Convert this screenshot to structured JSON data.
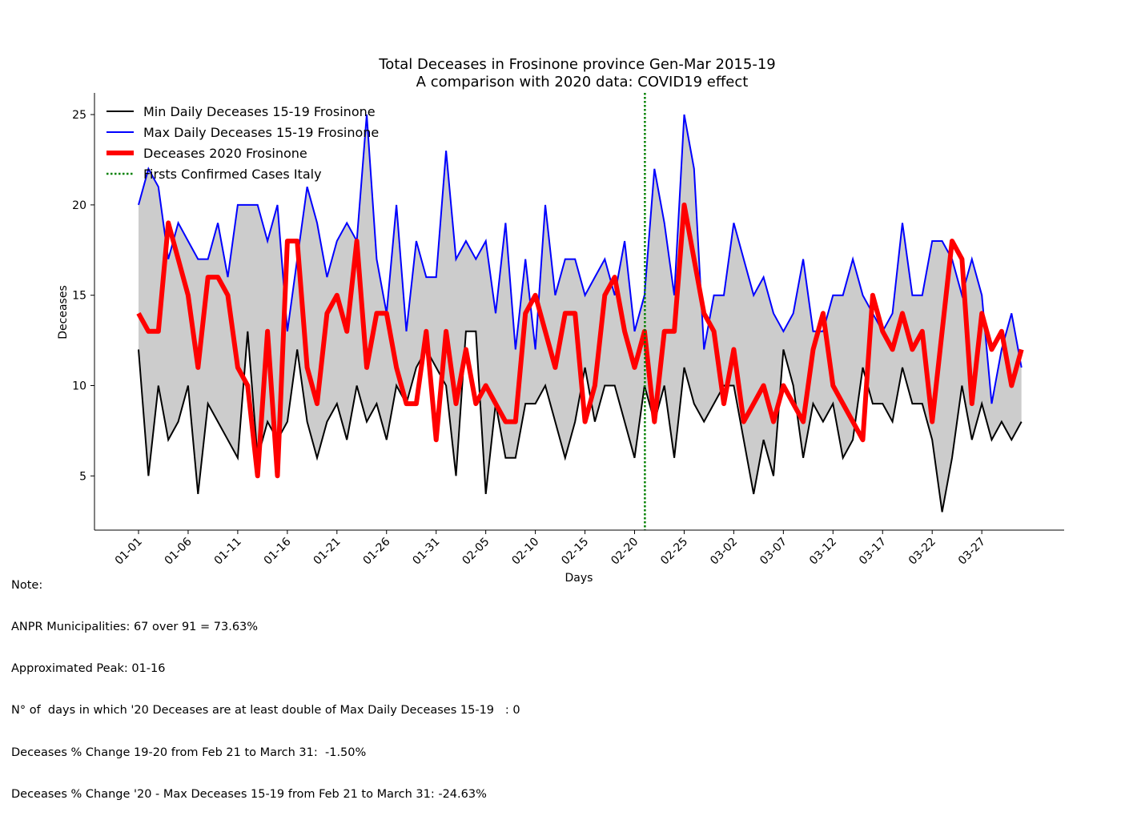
{
  "chart_data": {
    "type": "line",
    "title": "Total Deceases in Frosinone province Gen-Mar 2015-19",
    "subtitle": "A comparison with 2020 data: COVID19 effect",
    "xlabel": "Days",
    "ylabel": "Deceases",
    "ylim": [
      2,
      26.2
    ],
    "yticks": [
      5,
      10,
      15,
      20,
      25
    ],
    "x_tick_labels": [
      "01-01",
      "01-06",
      "01-11",
      "01-16",
      "01-21",
      "01-26",
      "01-31",
      "02-05",
      "02-10",
      "02-15",
      "02-20",
      "02-25",
      "03-02",
      "03-07",
      "03-12",
      "03-17",
      "03-22",
      "03-27"
    ],
    "x_tick_step": 5,
    "grid": false,
    "legend_placement": "top-left",
    "fill_between": "min-max band",
    "fill_color": "#cccccc",
    "vline": {
      "name": "Firsts Confirmed Cases Italy",
      "x_index": 51,
      "color": "#008000",
      "style": "dotted"
    },
    "series": [
      {
        "name": "Min Daily Deceases 15-19 Frosinone",
        "color": "#000000",
        "width": 2,
        "values": [
          12,
          5,
          10,
          7,
          8,
          10,
          4,
          9,
          8,
          7,
          6,
          13,
          6,
          8,
          7,
          8,
          12,
          8,
          6,
          8,
          9,
          7,
          10,
          8,
          9,
          7,
          10,
          9,
          11,
          12,
          11,
          10,
          5,
          13,
          13,
          4,
          9,
          6,
          6,
          9,
          9,
          10,
          8,
          6,
          8,
          11,
          8,
          10,
          10,
          8,
          6,
          10,
          8,
          10,
          6,
          11,
          9,
          8,
          9,
          10,
          10,
          7,
          4,
          7,
          5,
          12,
          10,
          6,
          9,
          8,
          9,
          6,
          7,
          11,
          9,
          9,
          8,
          11,
          9,
          9,
          7,
          3,
          6,
          10,
          7,
          9,
          7,
          8,
          7,
          8
        ]
      },
      {
        "name": "Max Daily Deceases 15-19 Frosinone",
        "color": "#0000ff",
        "width": 2,
        "values": [
          20,
          22,
          21,
          17,
          19,
          18,
          17,
          17,
          19,
          16,
          20,
          20,
          20,
          18,
          20,
          13,
          17,
          21,
          19,
          16,
          18,
          19,
          18,
          25,
          17,
          14,
          20,
          13,
          18,
          16,
          16,
          23,
          17,
          18,
          17,
          18,
          14,
          19,
          12,
          17,
          12,
          20,
          15,
          17,
          17,
          15,
          16,
          17,
          15,
          18,
          13,
          15,
          22,
          19,
          15,
          25,
          22,
          12,
          15,
          15,
          19,
          17,
          15,
          16,
          14,
          13,
          14,
          17,
          13,
          13,
          15,
          15,
          17,
          15,
          14,
          13,
          14,
          19,
          15,
          15,
          18,
          18,
          17,
          15,
          17,
          15,
          9,
          12,
          14,
          11
        ]
      },
      {
        "name": "Deceases 2020 Frosinone",
        "color": "#ff0000",
        "width": 6,
        "values": [
          14,
          13,
          13,
          19,
          17,
          15,
          11,
          16,
          16,
          15,
          11,
          10,
          5,
          13,
          5,
          18,
          18,
          11,
          9,
          14,
          15,
          13,
          18,
          11,
          14,
          14,
          11,
          9,
          9,
          13,
          7,
          13,
          9,
          12,
          9,
          10,
          9,
          8,
          8,
          14,
          15,
          13,
          11,
          14,
          14,
          8,
          10,
          15,
          16,
          13,
          11,
          13,
          8,
          13,
          13,
          20,
          17,
          14,
          13,
          9,
          12,
          8,
          9,
          10,
          8,
          10,
          9,
          8,
          12,
          14,
          10,
          9,
          8,
          7,
          15,
          13,
          12,
          14,
          12,
          13,
          8,
          13,
          18,
          17,
          9,
          14,
          12,
          13,
          10,
          12
        ]
      }
    ]
  },
  "notes": [
    "Note:",
    "ANPR Municipalities: 67 over 91 = 73.63%",
    "Approximated Peak: 01-16",
    "N° of  days in which '20 Deceases are at least double of Max Daily Deceases 15-19   : 0",
    "Deceases % Change 19-20 from Feb 21 to March 31:  -1.50%",
    "Deceases % Change '20 - Max Deceases 15-19 from Feb 21 to March 31: -24.63%"
  ]
}
